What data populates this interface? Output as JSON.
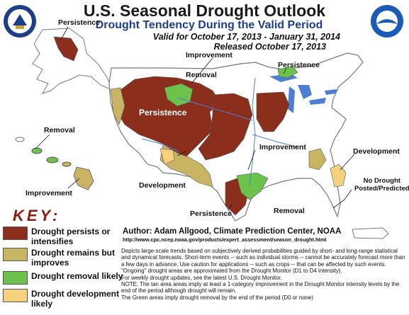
{
  "title": "U.S. Seasonal Drought Outlook",
  "subtitle": "Drought Tendency During the Valid Period",
  "valid_period": "Valid for October 17, 2013 - January 31, 2014",
  "released": "Released October 17, 2013",
  "seal_icon": "department-of-commerce-seal-icon",
  "noaa_icon": "noaa-logo-icon",
  "map_labels": {
    "persistence_alaska": "Persistence",
    "removal_hawaii": "Removal",
    "improvement_hawaii": "Improvement",
    "improvement_north": "Improvement",
    "removal_north": "Removal",
    "persistence_great_lakes": "Persistence",
    "persistence_west": "Persistence",
    "improvement_southeast": "Improvement",
    "development_east": "Development",
    "development_southwest": "Development",
    "persistence_texas": "Persistence",
    "removal_texas": "Removal",
    "no_drought": "No Drought\nPosted/Predicted"
  },
  "key": {
    "title": "KEY:",
    "items": [
      {
        "label": "Drought persists or intensifies",
        "color": "#8c2e1c"
      },
      {
        "label": "Drought remains but improves",
        "color": "#c8b463"
      },
      {
        "label": "Drought removal likely",
        "color": "#6cc24a"
      },
      {
        "label": "Drought development likely",
        "color": "#f7d27e"
      }
    ]
  },
  "colors": {
    "persist": "#8c2e1c",
    "improve": "#c8b463",
    "removal": "#6cc24a",
    "development": "#f7d27e",
    "land": "#ffffff",
    "water": "#4a7fd4",
    "border": "#999999"
  },
  "author": "Author: Adam Allgood, Climate Prediction Center, NOAA",
  "url": "http://www.cpc.ncep.noaa.gov/products/expert_assessment/season_drought.html",
  "description": [
    "Depicts large-scale trends based on subjectively derived probabilities guided by short- and long-range statistical and dynamical forecasts. Short-term events -- such as individual storms -- cannot be accurately forecast more than a few days in advance. Use caution for applications -- such as crops -- that can be affected by such events. \"Ongoing\" drought areas are approximated from the Drought Monitor (D1 to D4 intensity).",
    "For weekly drought updates, see the latest U.S. Drought Monitor.",
    "NOTE: The tan area areas imply at least a 1-category improvement in the Drought Monitor intensity levels by the end of the period although drought will remain.",
    "The Green areas imply drought removal by the end of the period (D0 or none)"
  ]
}
